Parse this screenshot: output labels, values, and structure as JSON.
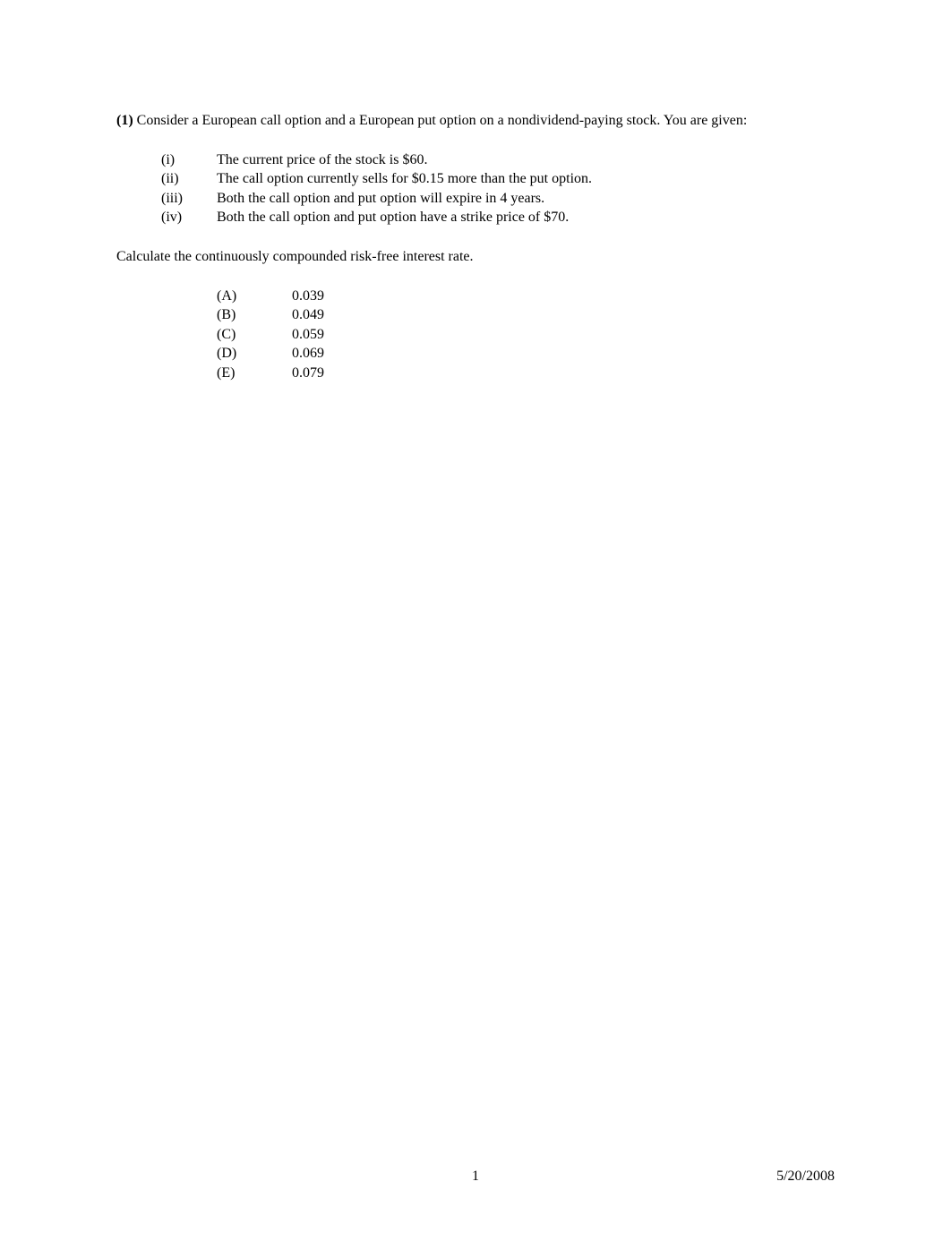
{
  "intro": {
    "question_number": "(1)",
    "text_part1": "  Consider a European call option and a European put option on a nondividend-paying stock.  You are given:"
  },
  "given_items": [
    {
      "numeral": "(i)",
      "text": "The current price of the stock is $60."
    },
    {
      "numeral": "(ii)",
      "text": "The call option currently sells for $0.15 more than the put option."
    },
    {
      "numeral": "(iii)",
      "text": "Both the call option and put option will expire in 4 years."
    },
    {
      "numeral": "(iv)",
      "text": "Both the call option and put option have a strike price of $70."
    }
  ],
  "calculate_text": "Calculate the continuously compounded risk-free interest rate.",
  "choices": [
    {
      "label": "(A)",
      "value": "0.039"
    },
    {
      "label": "(B)",
      "value": "0.049"
    },
    {
      "label": "(C)",
      "value": "0.059"
    },
    {
      "label": "(D)",
      "value": "0.069"
    },
    {
      "label": "(E)",
      "value": "0.079"
    }
  ],
  "footer": {
    "page_number": "1",
    "date": "5/20/2008"
  }
}
